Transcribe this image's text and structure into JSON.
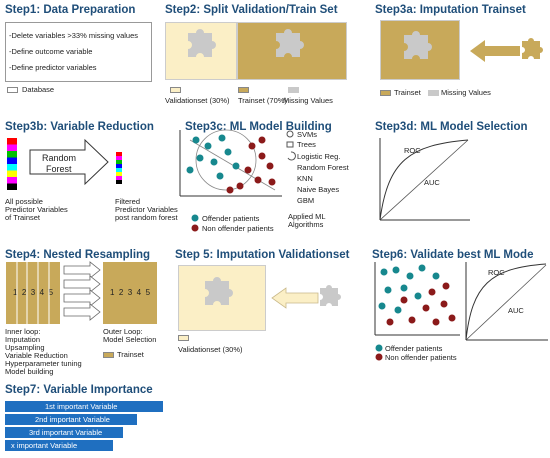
{
  "step1": {
    "title": "Step1: Data Preparation",
    "lines": [
      "-Delete variables >33% missing values",
      "-Define outcome variable",
      "-Define predictor variables"
    ],
    "legend": "Database"
  },
  "step2": {
    "title": "Step2: Split Validation/Train Set",
    "legend_validation": "Validationset (30%)",
    "legend_train": "Trainset (70%)",
    "legend_missing": "Missing Values"
  },
  "step3a": {
    "title": "Step3a: Imputation Trainset",
    "legend_train": "Trainset",
    "legend_missing": "Missing Values"
  },
  "step3b": {
    "title": "Step3b: Variable Reduction",
    "arrow_label_1": "Random",
    "arrow_label_2": "Forest",
    "left_caption": [
      "All possible",
      "Predictor Variables",
      "of Trainset"
    ],
    "right_caption": [
      "Filtered",
      "Predictor Variables",
      "post random forest"
    ],
    "colors": [
      "#ff0000",
      "#ff00ff",
      "#00c000",
      "#0000ff",
      "#00ffff",
      "#ffff00",
      "#ff00ff",
      "#000000"
    ]
  },
  "step3c": {
    "title": "Step3c: ML Model Building",
    "algorithms": [
      "SVMs",
      "Trees",
      "Logistic Reg.",
      "Random Forest",
      "KNN",
      "Naive Bayes",
      "GBM"
    ],
    "legend_offender": "Offender patients",
    "legend_non": "Non offender patients",
    "applied": [
      "Applied ML",
      "Algorithms"
    ],
    "offender_color": "#17888e",
    "non_offender_color": "#8b1a1a"
  },
  "step3d": {
    "title": "Step3d: ML Model Selection",
    "roc": "ROC",
    "auc": "AUC"
  },
  "step4": {
    "title": "Step4:  Nested Resampling",
    "folds": [
      "1",
      "2",
      "3",
      "4",
      "5"
    ],
    "inner": [
      "Inner loop:",
      "Imputation",
      "Upsampling",
      "Variable Reduction",
      "Hyperparameter tuning",
      "Model building"
    ],
    "outer": [
      "Outer Loop:",
      "Model Selection"
    ],
    "legend_train": "Trainset"
  },
  "step5": {
    "title": "Step 5: Imputation Validationset",
    "legend": "Validationset (30%)"
  },
  "step6": {
    "title": "Step6: Validate best ML  Mode",
    "roc": "ROC",
    "auc": "AUC",
    "legend_offender": "Offender patients",
    "legend_non": "Non offender patients"
  },
  "step7": {
    "title": "Step7: Variable Importance",
    "bars": [
      "1st important  Variable",
      "2nd important  Variable",
      "3rd important  Variable",
      "x important   Variable"
    ]
  }
}
